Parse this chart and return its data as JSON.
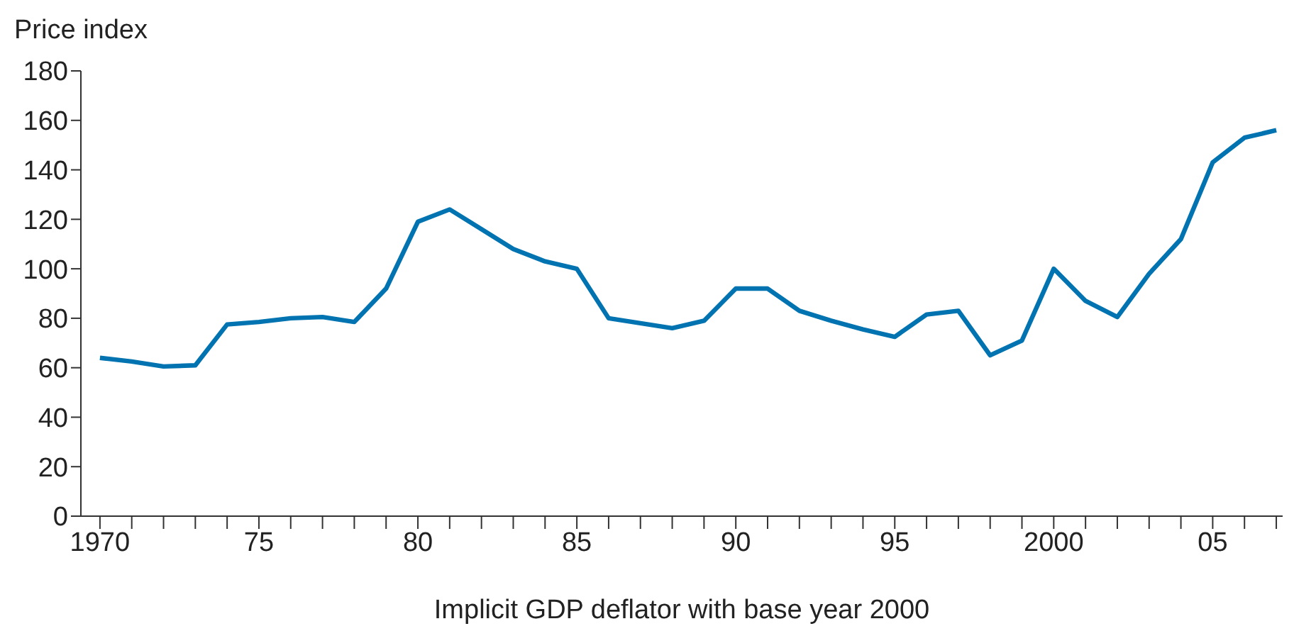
{
  "chart_data": {
    "type": "line",
    "ylabel": "Price index",
    "xlabel": "Implicit GDP deflator with base year 2000",
    "x": [
      1970,
      1971,
      1972,
      1973,
      1974,
      1975,
      1976,
      1977,
      1978,
      1979,
      1980,
      1981,
      1982,
      1983,
      1984,
      1985,
      1986,
      1987,
      1988,
      1989,
      1990,
      1991,
      1992,
      1993,
      1994,
      1995,
      1996,
      1997,
      1998,
      1999,
      2000,
      2001,
      2002,
      2003,
      2004,
      2005,
      2006,
      2007
    ],
    "series": [
      {
        "color": "#0073b0",
        "values": [
          64,
          62.5,
          60.5,
          61,
          77.5,
          78.5,
          80,
          80.5,
          78.5,
          92,
          119,
          124,
          116,
          108,
          103,
          100,
          80,
          78,
          76,
          79,
          92,
          92,
          83,
          79,
          75.5,
          72.5,
          81.5,
          83,
          65,
          71,
          100,
          87,
          80.5,
          98,
          112,
          143,
          153,
          156
        ]
      }
    ],
    "xlim": [
      1969.4,
      2007.2
    ],
    "xticks": [
      {
        "value": 1970,
        "label": "1970"
      },
      {
        "value": 1971,
        "label": null
      },
      {
        "value": 1972,
        "label": null
      },
      {
        "value": 1973,
        "label": null
      },
      {
        "value": 1974,
        "label": null
      },
      {
        "value": 1975,
        "label": "75"
      },
      {
        "value": 1976,
        "label": null
      },
      {
        "value": 1977,
        "label": null
      },
      {
        "value": 1978,
        "label": null
      },
      {
        "value": 1979,
        "label": null
      },
      {
        "value": 1980,
        "label": "80"
      },
      {
        "value": 1981,
        "label": null
      },
      {
        "value": 1982,
        "label": null
      },
      {
        "value": 1983,
        "label": null
      },
      {
        "value": 1984,
        "label": null
      },
      {
        "value": 1985,
        "label": "85"
      },
      {
        "value": 1986,
        "label": null
      },
      {
        "value": 1987,
        "label": null
      },
      {
        "value": 1988,
        "label": null
      },
      {
        "value": 1989,
        "label": null
      },
      {
        "value": 1990,
        "label": "90"
      },
      {
        "value": 1991,
        "label": null
      },
      {
        "value": 1992,
        "label": null
      },
      {
        "value": 1993,
        "label": null
      },
      {
        "value": 1994,
        "label": null
      },
      {
        "value": 1995,
        "label": "95"
      },
      {
        "value": 1996,
        "label": null
      },
      {
        "value": 1997,
        "label": null
      },
      {
        "value": 1998,
        "label": null
      },
      {
        "value": 1999,
        "label": null
      },
      {
        "value": 2000,
        "label": "2000"
      },
      {
        "value": 2001,
        "label": null
      },
      {
        "value": 2002,
        "label": null
      },
      {
        "value": 2003,
        "label": null
      },
      {
        "value": 2004,
        "label": null
      },
      {
        "value": 2005,
        "label": "05"
      },
      {
        "value": 2006,
        "label": null
      },
      {
        "value": 2007,
        "label": null
      }
    ],
    "ylim": [
      0,
      180
    ],
    "yticks": [
      0,
      20,
      40,
      60,
      80,
      100,
      120,
      140,
      160,
      180
    ],
    "grid": false,
    "legend": false,
    "marker": "none",
    "line_style": "solid"
  }
}
